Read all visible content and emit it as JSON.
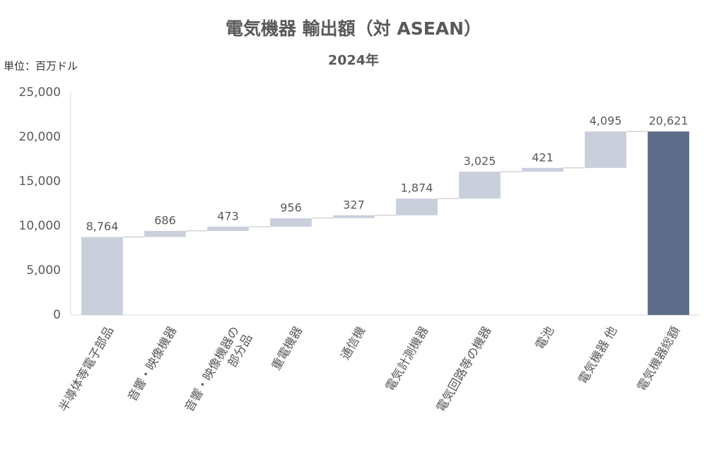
{
  "chart_data": {
    "type": "waterfall",
    "title": "電気機器 輸出額（対 ASEAN）",
    "subtitle": "2024年",
    "unit_label": "単位：百万ドル",
    "categories": [
      "半導体等電子部品",
      "音響・映像機器",
      "音響・映像機器の\n部分品",
      "重電機器",
      "通信機",
      "電気計測機器",
      "電気回路等の機器",
      "電池",
      "電気機器 他",
      "電気機器総額"
    ],
    "values": [
      8764,
      686,
      473,
      956,
      327,
      1874,
      3025,
      421,
      4095,
      20621
    ],
    "value_labels": [
      "8,764",
      "686",
      "473",
      "956",
      "327",
      "1,874",
      "3,025",
      "421",
      "4,095",
      "20,621"
    ],
    "color": "#c9cfdb",
    "total_color": "#5e6c89",
    "ylim": [
      0,
      25000
    ],
    "yticks": [
      0,
      {
        "value": 5000,
        "label": "5,000"
      },
      {
        "value": 10000,
        "label": "10,000"
      },
      {
        "value": 15000,
        "label": "15,000"
      },
      {
        "value": 20000,
        "label": "20,000"
      },
      {
        "value": 25000,
        "label": "25,000"
      }
    ],
    "grid": false
  }
}
